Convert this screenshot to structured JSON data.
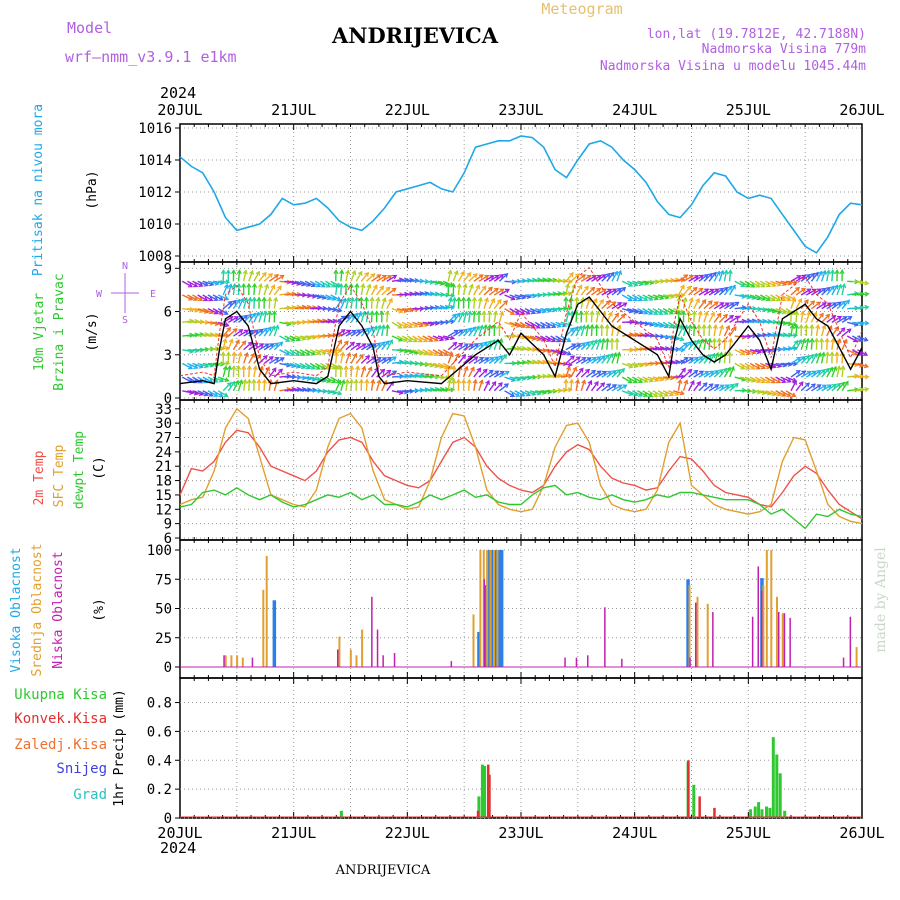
{
  "header": {
    "model_label": "Model",
    "model_name": "wrf—nmm_v3.9.1  e1km",
    "station": "ANDRIJEVICA",
    "meteogram": "Meteogram",
    "lonlat": "lon,lat (19.7812E, 42.7188N)",
    "altitude": "Nadmorska Visina 779m",
    "model_altitude": "Nadmorska Visina u modelu 1045.44m",
    "credit": "made by Angel",
    "footer": "ANDRIJEVICA"
  },
  "colors": {
    "pressure": "#1ea8e8",
    "temp2m": "#f0504a",
    "sfc": "#e0a030",
    "dewpt": "#30c830",
    "cloud_high": "#2a80e8",
    "cloud_mid": "#e0a030",
    "cloud_low": "#c020b0",
    "precip_total": "#30c830",
    "precip_conv": "#e03030",
    "precip_freezing": "#f07030",
    "snow": "#4040e0",
    "hail": "#30c0c0",
    "purple": "#b060e0"
  },
  "chart_data": [
    {
      "type": "line",
      "id": "pressure",
      "ylabel_left": "Pritisak na nivou mora",
      "ylabel_unit": "(hPa)",
      "ylim": [
        1008,
        1016
      ],
      "yticks": [
        "1008",
        "1010",
        "1012",
        "1014",
        "1016"
      ],
      "x_day_labels": [
        "20JUL",
        "21JUL",
        "22JUL",
        "23JUL",
        "24JUL",
        "25JUL",
        "26JUL"
      ],
      "x_year": "2024",
      "grid": true,
      "series": [
        {
          "key": "pressure",
          "x": [
            0,
            0.1,
            0.2,
            0.3,
            0.4,
            0.5,
            0.6,
            0.7,
            0.8,
            0.9,
            1.0,
            1.1,
            1.2,
            1.3,
            1.4,
            1.5,
            1.6,
            1.7,
            1.8,
            1.9,
            2.0,
            2.1,
            2.2,
            2.3,
            2.4,
            2.5,
            2.6,
            2.7,
            2.8,
            2.9,
            3.0,
            3.1,
            3.2,
            3.3,
            3.4,
            3.5,
            3.6,
            3.7,
            3.8,
            3.9,
            4.0,
            4.1,
            4.2,
            4.3,
            4.4,
            4.5,
            4.6,
            4.7,
            4.8,
            4.9,
            5.0,
            5.1,
            5.2,
            5.3,
            5.4,
            5.5,
            5.6,
            5.7,
            5.8,
            5.9,
            6.0
          ],
          "y": [
            1014.2,
            1013.6,
            1013.2,
            1012.0,
            1010.4,
            1009.6,
            1009.8,
            1010.0,
            1010.6,
            1011.6,
            1011.2,
            1011.3,
            1011.6,
            1011.0,
            1010.2,
            1009.8,
            1009.6,
            1010.2,
            1011.0,
            1012.0,
            1012.2,
            1012.4,
            1012.6,
            1012.2,
            1012.0,
            1013.2,
            1014.8,
            1015.0,
            1015.2,
            1015.2,
            1015.5,
            1015.4,
            1014.8,
            1013.4,
            1012.9,
            1014.0,
            1015.0,
            1015.2,
            1014.8,
            1014.0,
            1013.4,
            1012.6,
            1011.4,
            1010.6,
            1010.4,
            1011.2,
            1012.4,
            1013.2,
            1013.0,
            1012.0,
            1011.6,
            1011.8,
            1011.6,
            1010.6,
            1009.6,
            1008.6,
            1008.2,
            1009.2,
            1010.6,
            1011.3,
            1011.2
          ]
        }
      ]
    },
    {
      "type": "line",
      "id": "wind",
      "ylabel_left": [
        "10m Vjetar",
        "Brzina i Pravac"
      ],
      "ylabel_unit": "(m/s)",
      "compass": [
        "N",
        "W",
        "E",
        "S"
      ],
      "ylim": [
        0,
        9.3
      ],
      "yticks": [
        "0",
        "3",
        "6",
        "9"
      ],
      "grid": true,
      "series": [
        {
          "key": "windspeed",
          "x": [
            0,
            0.2,
            0.3,
            0.35,
            0.4,
            0.5,
            0.6,
            0.7,
            0.75,
            0.8,
            1.0,
            1.2,
            1.3,
            1.4,
            1.5,
            1.6,
            1.7,
            1.75,
            1.8,
            2.0,
            2.3,
            2.6,
            2.8,
            2.9,
            3.0,
            3.2,
            3.3,
            3.4,
            3.5,
            3.6,
            3.7,
            3.8,
            4.0,
            4.2,
            4.3,
            4.35,
            4.4,
            4.5,
            4.6,
            4.7,
            4.8,
            4.9,
            5.0,
            5.1,
            5.2,
            5.3,
            5.4,
            5.5,
            5.6,
            5.7,
            5.8,
            5.9,
            6.0
          ],
          "y": [
            1.0,
            1.2,
            1.0,
            3.5,
            5.5,
            6.0,
            5.0,
            2.0,
            1.5,
            1.0,
            1.2,
            1.0,
            1.5,
            5.0,
            6.0,
            5.0,
            3.5,
            1.5,
            1.0,
            1.2,
            1.0,
            3.0,
            4.0,
            3.0,
            4.5,
            3.0,
            1.5,
            4.5,
            6.5,
            7.0,
            6.0,
            5.0,
            4.0,
            3.0,
            1.5,
            4.0,
            5.5,
            4.0,
            3.0,
            2.5,
            3.0,
            4.0,
            5.0,
            4.0,
            2.0,
            5.5,
            6.0,
            6.5,
            5.5,
            5.0,
            3.5,
            2.0,
            3.5
          ]
        }
      ]
    },
    {
      "type": "line",
      "id": "temperature",
      "ylabel_left": [
        "2m Temp",
        "SFC Temp",
        "dewpt Temp"
      ],
      "ylabel_unit": "(C)",
      "ylim": [
        6,
        34
      ],
      "yticks": [
        "6",
        "9",
        "12",
        "15",
        "18",
        "21",
        "24",
        "27",
        "30",
        "33"
      ],
      "grid": true,
      "series": [
        {
          "key": "temp2m",
          "x": [
            0,
            0.1,
            0.2,
            0.3,
            0.4,
            0.5,
            0.6,
            0.7,
            0.8,
            0.9,
            1.0,
            1.1,
            1.2,
            1.3,
            1.4,
            1.5,
            1.6,
            1.7,
            1.8,
            1.9,
            2.0,
            2.1,
            2.2,
            2.3,
            2.4,
            2.5,
            2.6,
            2.7,
            2.8,
            2.9,
            3.0,
            3.1,
            3.2,
            3.3,
            3.4,
            3.5,
            3.6,
            3.7,
            3.8,
            3.9,
            4.0,
            4.1,
            4.2,
            4.3,
            4.4,
            4.5,
            4.6,
            4.7,
            4.8,
            4.9,
            5.0,
            5.1,
            5.2,
            5.3,
            5.4,
            5.5,
            5.6,
            5.7,
            5.8,
            5.9,
            6.0
          ],
          "y": [
            15.0,
            20.5,
            20.0,
            22.0,
            26.0,
            28.5,
            28.0,
            25.0,
            21.0,
            20.0,
            19.0,
            18.0,
            20.0,
            24.0,
            26.5,
            27.0,
            26.0,
            22.0,
            19.0,
            18.0,
            17.0,
            16.5,
            18.0,
            22.0,
            26.0,
            27.0,
            25.0,
            21.0,
            18.5,
            17.0,
            16.0,
            15.5,
            17.0,
            21.0,
            24.0,
            25.5,
            24.5,
            21.0,
            18.5,
            17.5,
            17.0,
            16.0,
            16.5,
            20.0,
            23.0,
            22.5,
            20.0,
            17.0,
            15.5,
            15.0,
            14.5,
            13.0,
            12.5,
            15.5,
            19.0,
            21.0,
            19.5,
            16.0,
            13.0,
            11.5,
            10.0
          ]
        },
        {
          "key": "sfc",
          "x": [
            0,
            0.1,
            0.2,
            0.3,
            0.4,
            0.5,
            0.6,
            0.7,
            0.8,
            0.9,
            1.0,
            1.1,
            1.2,
            1.3,
            1.4,
            1.5,
            1.6,
            1.7,
            1.8,
            1.9,
            2.0,
            2.1,
            2.2,
            2.3,
            2.4,
            2.5,
            2.6,
            2.7,
            2.8,
            2.9,
            3.0,
            3.1,
            3.2,
            3.3,
            3.4,
            3.5,
            3.6,
            3.7,
            3.8,
            3.9,
            4.0,
            4.1,
            4.2,
            4.3,
            4.4,
            4.5,
            4.6,
            4.7,
            4.8,
            4.9,
            5.0,
            5.1,
            5.2,
            5.3,
            5.4,
            5.5,
            5.6,
            5.7,
            5.8,
            5.9,
            6.0
          ],
          "y": [
            13.0,
            14.0,
            14.5,
            20.0,
            29.0,
            33.0,
            31.0,
            23.0,
            15.0,
            14.0,
            13.0,
            12.5,
            16.0,
            25.0,
            31.0,
            32.0,
            29.0,
            20.0,
            14.0,
            13.0,
            12.0,
            12.5,
            18.0,
            27.0,
            32.0,
            31.5,
            25.0,
            16.0,
            13.0,
            12.0,
            11.5,
            12.0,
            17.0,
            25.0,
            29.5,
            30.0,
            26.0,
            17.0,
            13.0,
            12.0,
            11.5,
            12.0,
            16.0,
            26.0,
            30.0,
            17.0,
            15.0,
            13.0,
            12.0,
            11.5,
            11.0,
            11.5,
            13.0,
            22.0,
            27.0,
            26.5,
            20.0,
            13.0,
            10.5,
            9.5,
            9.0
          ]
        },
        {
          "key": "dewpt",
          "x": [
            0,
            0.1,
            0.2,
            0.3,
            0.4,
            0.5,
            0.6,
            0.7,
            0.8,
            0.9,
            1.0,
            1.1,
            1.2,
            1.3,
            1.4,
            1.5,
            1.6,
            1.7,
            1.8,
            1.9,
            2.0,
            2.1,
            2.2,
            2.3,
            2.4,
            2.5,
            2.6,
            2.7,
            2.8,
            2.9,
            3.0,
            3.1,
            3.2,
            3.3,
            3.4,
            3.5,
            3.6,
            3.7,
            3.8,
            3.9,
            4.0,
            4.1,
            4.2,
            4.3,
            4.4,
            4.5,
            4.6,
            4.7,
            4.8,
            4.9,
            5.0,
            5.1,
            5.2,
            5.3,
            5.4,
            5.5,
            5.6,
            5.7,
            5.8,
            5.9,
            6.0
          ],
          "y": [
            12.5,
            13.0,
            15.5,
            16.0,
            15.0,
            16.5,
            15.0,
            14.0,
            15.0,
            13.5,
            12.5,
            13.0,
            14.0,
            15.0,
            14.5,
            15.5,
            14.0,
            15.0,
            13.0,
            13.0,
            12.5,
            13.5,
            15.0,
            14.0,
            15.0,
            16.0,
            14.5,
            15.0,
            13.5,
            13.0,
            13.0,
            15.0,
            16.5,
            17.0,
            15.0,
            15.5,
            14.5,
            14.0,
            15.0,
            14.0,
            13.5,
            14.0,
            15.0,
            14.5,
            15.5,
            15.5,
            15.0,
            14.5,
            14.0,
            14.0,
            14.0,
            13.0,
            11.0,
            12.0,
            10.0,
            8.0,
            11.0,
            10.5,
            12.0,
            11.0,
            10.5
          ]
        }
      ]
    },
    {
      "type": "bar",
      "id": "clouds",
      "ylabel_left": [
        "Visoka Oblacnost",
        "Srednja Oblacnost",
        "Niska Oblacnost"
      ],
      "ylabel_unit": "(%)",
      "ylim": [
        0,
        100
      ],
      "yticks": [
        "0",
        "25",
        "50",
        "75",
        "100"
      ],
      "grid": true,
      "series": [
        {
          "key": "cloud_high",
          "x": [
            0.83,
            2.63,
            2.68,
            2.71,
            2.74,
            2.77,
            2.8,
            2.83,
            4.47,
            5.12
          ],
          "y": [
            57,
            30,
            70,
            100,
            100,
            100,
            100,
            100,
            75,
            76
          ]
        },
        {
          "key": "cloud_mid",
          "x": [
            0.42,
            0.47,
            0.52,
            0.57,
            0.75,
            0.78,
            1.42,
            1.52,
            1.57,
            1.62,
            2.6,
            2.66,
            2.69,
            2.72,
            2.75,
            2.78,
            2.81,
            4.5,
            4.57,
            4.66,
            5.15,
            5.18,
            5.22,
            5.27,
            5.32,
            5.97
          ],
          "y": [
            10,
            10,
            10,
            8,
            66,
            95,
            26,
            15,
            10,
            32,
            45,
            100,
            100,
            100,
            100,
            100,
            100,
            70,
            60,
            54,
            70,
            100,
            100,
            60,
            46,
            17
          ]
        },
        {
          "key": "cloud_low",
          "x": [
            0.37,
            0.62,
            1.37,
            1.67,
            1.72,
            1.77,
            1.87,
            2.37,
            2.66,
            3.37,
            3.47,
            3.57,
            3.72,
            3.87,
            4.47,
            4.52,
            4.67,
            5.02,
            5.07,
            5.1,
            5.25,
            5.3,
            5.35,
            5.82,
            5.88
          ],
          "y": [
            10,
            8,
            15,
            60,
            32,
            10,
            12,
            5,
            75,
            8,
            8,
            10,
            51,
            7,
            8,
            55,
            47,
            43,
            86,
            65,
            47,
            46,
            42,
            8,
            43
          ]
        }
      ]
    },
    {
      "type": "bar",
      "id": "precip",
      "ylabel_left": [
        "Ukupna Kisa",
        "Konvek.Kisa",
        "Zaledj.Kisa",
        "Snijeg",
        "Grad"
      ],
      "ylabel_unit": "1hr Precip (mm)",
      "ylim": [
        0,
        0.97
      ],
      "yticks": [
        "0",
        "0.2",
        "0.4",
        "0.6",
        "0.8"
      ],
      "x_day_labels": [
        "20JUL",
        "21JUL",
        "22JUL",
        "23JUL",
        "24JUL",
        "25JUL",
        "26JUL"
      ],
      "x_year": "2024",
      "grid": true,
      "series": [
        {
          "key": "precip_total",
          "x": [
            0.3,
            1.42,
            2.63,
            2.66,
            2.68,
            4.47,
            4.52,
            5.02,
            5.06,
            5.09,
            5.12,
            5.16,
            5.19,
            5.22,
            5.25,
            5.28,
            5.32
          ],
          "y": [
            0.01,
            0.05,
            0.15,
            0.37,
            0.36,
            0.39,
            0.23,
            0.06,
            0.08,
            0.11,
            0.06,
            0.08,
            0.07,
            0.56,
            0.44,
            0.31,
            0.05
          ]
        },
        {
          "key": "precip_conv",
          "x": [
            0.27,
            0.68,
            1.39,
            1.77,
            2.6,
            2.69,
            2.7,
            4.45,
            4.55,
            4.68
          ],
          "y": [
            0.01,
            0.01,
            0.01,
            0.01,
            0.05,
            0.37,
            0.3,
            0.4,
            0.15,
            0.07
          ]
        }
      ]
    }
  ]
}
